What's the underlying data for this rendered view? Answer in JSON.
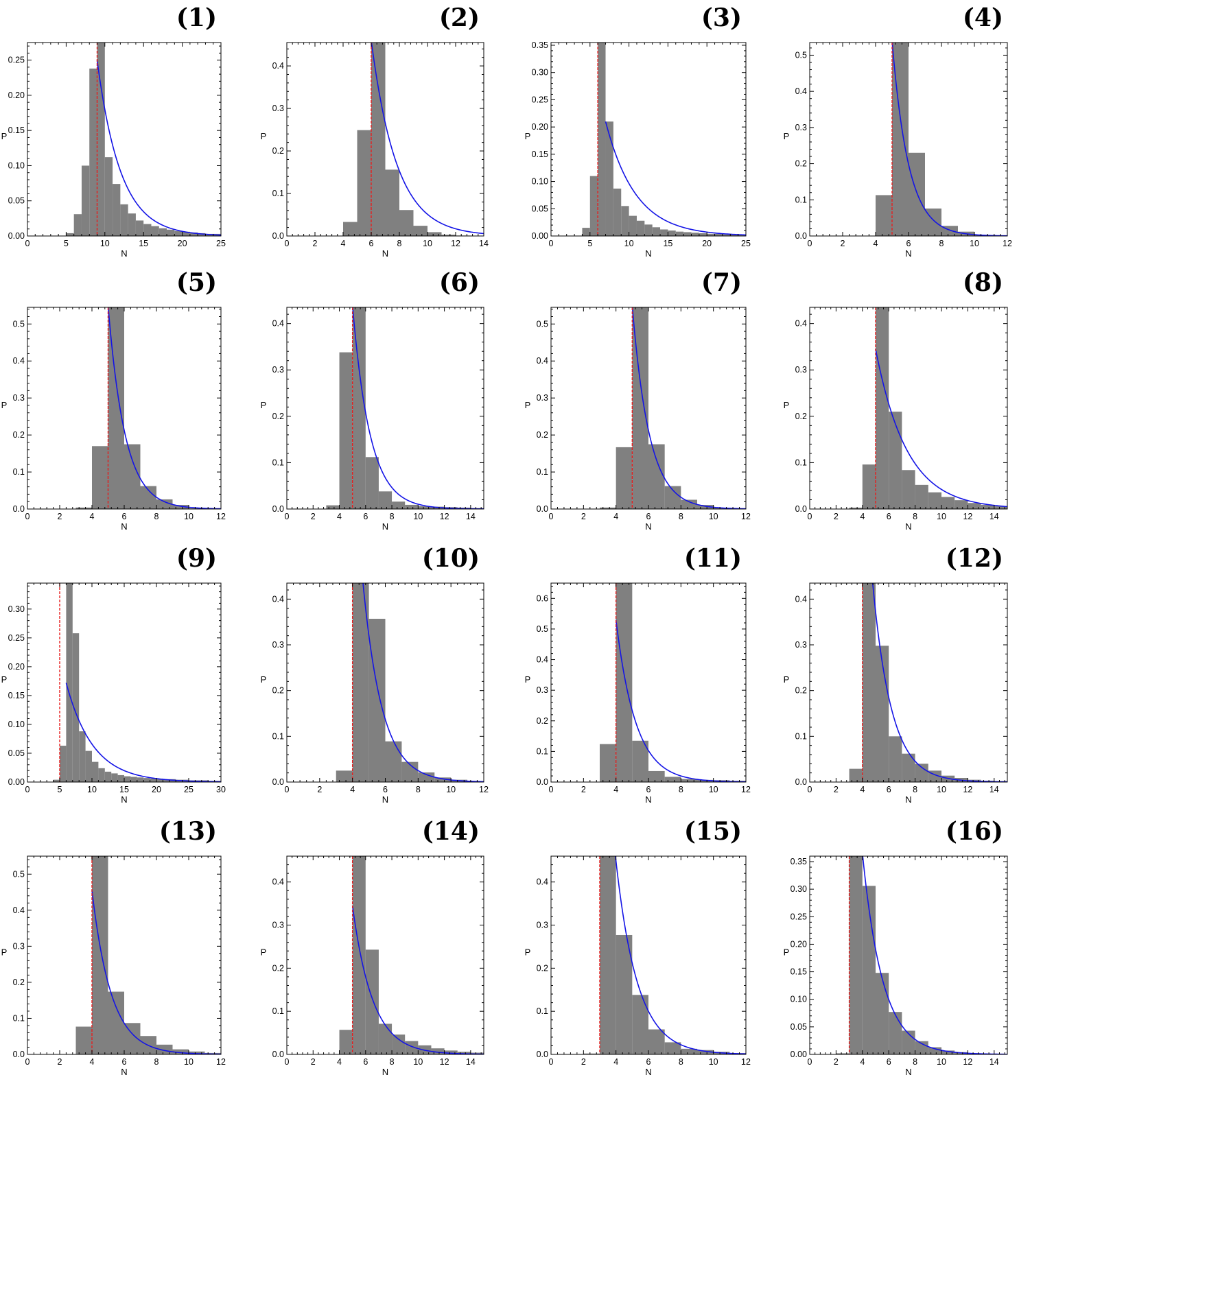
{
  "chart_data": [
    {
      "panel_label": "(1)",
      "type": "bar",
      "xlabel": "N",
      "ylabel": "P",
      "xlim": [
        0,
        25
      ],
      "ylim": [
        0,
        0.275
      ],
      "xticks": [
        0,
        5,
        10,
        15,
        20,
        25
      ],
      "yticks": [
        0,
        0.05,
        0.1,
        0.15,
        0.2,
        0.25
      ],
      "ytick_labels": [
        "0.00",
        "0.05",
        "0.10",
        "0.15",
        "0.20",
        "0.25"
      ],
      "bar_edges": [
        0,
        1,
        2,
        3,
        4,
        5,
        6,
        7,
        8,
        9,
        10,
        11,
        12,
        13,
        14,
        15,
        16,
        17,
        18,
        19,
        20,
        21,
        22,
        23,
        24,
        25
      ],
      "values": [
        0,
        0,
        0,
        0,
        0,
        0.004,
        0.031,
        0.1,
        0.238,
        0.276,
        0.112,
        0.074,
        0.045,
        0.032,
        0.022,
        0.017,
        0.014,
        0.011,
        0.009,
        0.007,
        0.006,
        0.005,
        0.004,
        0.003,
        0.003
      ],
      "vline_x": 9,
      "fit_curve": {
        "x_start": 9,
        "x_end": 25,
        "y_start": 0.25,
        "decay": 0.33
      }
    },
    {
      "panel_label": "(2)",
      "type": "bar",
      "xlabel": "N",
      "ylabel": "P",
      "xlim": [
        0,
        14
      ],
      "ylim": [
        0,
        0.455
      ],
      "xticks": [
        0,
        2,
        4,
        6,
        8,
        10,
        12,
        14
      ],
      "yticks": [
        0,
        0.1,
        0.2,
        0.3,
        0.4
      ],
      "ytick_labels": [
        "0.0",
        "0.1",
        "0.2",
        "0.3",
        "0.4"
      ],
      "bar_edges": [
        0,
        1,
        2,
        3,
        4,
        5,
        6,
        7,
        8,
        9,
        10,
        11,
        12,
        13,
        14
      ],
      "values": [
        0,
        0,
        0,
        0,
        0.033,
        0.249,
        0.46,
        0.156,
        0.061,
        0.024,
        0.009,
        0.003,
        0.001,
        0
      ],
      "vline_x": 6,
      "fit_curve": {
        "x_start": 6,
        "x_end": 14,
        "y_start": 0.46,
        "decay": 0.55
      }
    },
    {
      "panel_label": "(3)",
      "type": "bar",
      "xlabel": "N",
      "ylabel": "P",
      "xlim": [
        0,
        25
      ],
      "ylim": [
        0,
        0.355
      ],
      "xticks": [
        0,
        5,
        10,
        15,
        20,
        25
      ],
      "yticks": [
        0,
        0.05,
        0.1,
        0.15,
        0.2,
        0.25,
        0.3,
        0.35
      ],
      "ytick_labels": [
        "0.00",
        "0.05",
        "0.10",
        "0.15",
        "0.20",
        "0.25",
        "0.30",
        "0.35"
      ],
      "bar_edges": [
        0,
        1,
        2,
        3,
        4,
        5,
        6,
        7,
        8,
        9,
        10,
        11,
        12,
        13,
        14,
        15,
        16,
        17,
        18,
        19,
        20,
        21,
        22,
        23,
        24,
        25
      ],
      "values": [
        0,
        0,
        0,
        0,
        0.015,
        0.11,
        0.36,
        0.21,
        0.087,
        0.055,
        0.037,
        0.028,
        0.021,
        0.016,
        0.012,
        0.01,
        0.008,
        0.007,
        0.006,
        0.005,
        0.004,
        0.004,
        0.003,
        0.003,
        0.002
      ],
      "vline_x": 6,
      "fit_curve": {
        "x_start": 7,
        "x_end": 25,
        "y_start": 0.21,
        "decay": 0.26
      }
    },
    {
      "panel_label": "(4)",
      "type": "bar",
      "xlabel": "N",
      "ylabel": "P",
      "xlim": [
        0,
        12
      ],
      "ylim": [
        0,
        0.535
      ],
      "xticks": [
        0,
        2,
        4,
        6,
        8,
        10,
        12
      ],
      "yticks": [
        0,
        0.1,
        0.2,
        0.3,
        0.4,
        0.5
      ],
      "ytick_labels": [
        "0.0",
        "0.1",
        "0.2",
        "0.3",
        "0.4",
        "0.5"
      ],
      "bar_edges": [
        0,
        1,
        2,
        3,
        4,
        5,
        6,
        7,
        8,
        9,
        10,
        11,
        12
      ],
      "values": [
        0,
        0,
        0,
        0,
        0.113,
        0.54,
        0.23,
        0.076,
        0.028,
        0.012,
        0.003,
        0
      ],
      "vline_x": 5,
      "fit_curve": {
        "x_start": 5,
        "x_end": 12,
        "y_start": 0.54,
        "decay": 1.0
      }
    },
    {
      "panel_label": "(5)",
      "type": "bar",
      "xlabel": "N",
      "ylabel": "P",
      "xlim": [
        0,
        12
      ],
      "ylim": [
        0,
        0.545
      ],
      "xticks": [
        0,
        2,
        4,
        6,
        8,
        10,
        12
      ],
      "yticks": [
        0,
        0.1,
        0.2,
        0.3,
        0.4,
        0.5
      ],
      "ytick_labels": [
        "0.0",
        "0.1",
        "0.2",
        "0.3",
        "0.4",
        "0.5"
      ],
      "bar_edges": [
        0,
        1,
        2,
        3,
        4,
        5,
        6,
        7,
        8,
        9,
        10,
        11,
        12
      ],
      "values": [
        0,
        0,
        0,
        0.004,
        0.17,
        0.55,
        0.175,
        0.062,
        0.026,
        0.011,
        0.002,
        0
      ],
      "vline_x": 5,
      "fit_curve": {
        "x_start": 5,
        "x_end": 12,
        "y_start": 0.55,
        "decay": 0.95
      }
    },
    {
      "panel_label": "(6)",
      "type": "bar",
      "xlabel": "N",
      "ylabel": "P",
      "xlim": [
        0,
        15
      ],
      "ylim": [
        0,
        0.435
      ],
      "xticks": [
        0,
        2,
        4,
        6,
        8,
        10,
        12,
        14
      ],
      "yticks": [
        0,
        0.1,
        0.2,
        0.3,
        0.4
      ],
      "ytick_labels": [
        "0.0",
        "0.1",
        "0.2",
        "0.3",
        "0.4"
      ],
      "bar_edges": [
        0,
        1,
        2,
        3,
        4,
        5,
        6,
        7,
        8,
        9,
        10,
        11,
        12,
        13,
        14,
        15
      ],
      "values": [
        0,
        0,
        0,
        0.008,
        0.338,
        0.44,
        0.112,
        0.038,
        0.016,
        0.009,
        0.006,
        0.005,
        0.004,
        0.003,
        0.002
      ],
      "vline_x": 5,
      "fit_curve": {
        "x_start": 5,
        "x_end": 15,
        "y_start": 0.44,
        "decay": 0.75
      }
    },
    {
      "panel_label": "(7)",
      "type": "bar",
      "xlabel": "N",
      "ylabel": "P",
      "xlim": [
        0,
        12
      ],
      "ylim": [
        0,
        0.545
      ],
      "xticks": [
        0,
        2,
        4,
        6,
        8,
        10,
        12
      ],
      "yticks": [
        0,
        0.1,
        0.2,
        0.3,
        0.4,
        0.5
      ],
      "ytick_labels": [
        "0.0",
        "0.1",
        "0.2",
        "0.3",
        "0.4",
        "0.5"
      ],
      "bar_edges": [
        0,
        1,
        2,
        3,
        4,
        5,
        6,
        7,
        8,
        9,
        10,
        11,
        12
      ],
      "values": [
        0,
        0,
        0,
        0.004,
        0.167,
        0.55,
        0.175,
        0.062,
        0.025,
        0.011,
        0.003,
        0
      ],
      "vline_x": 5,
      "fit_curve": {
        "x_start": 5,
        "x_end": 12,
        "y_start": 0.55,
        "decay": 0.95
      }
    },
    {
      "panel_label": "(8)",
      "type": "bar",
      "xlabel": "N",
      "ylabel": "P",
      "xlim": [
        0,
        15
      ],
      "ylim": [
        0,
        0.435
      ],
      "xticks": [
        0,
        2,
        4,
        6,
        8,
        10,
        12,
        14
      ],
      "yticks": [
        0,
        0.1,
        0.2,
        0.3,
        0.4
      ],
      "ytick_labels": [
        "0.0",
        "0.1",
        "0.2",
        "0.3",
        "0.4"
      ],
      "bar_edges": [
        0,
        1,
        2,
        3,
        4,
        5,
        6,
        7,
        8,
        9,
        10,
        11,
        12,
        13,
        14,
        15
      ],
      "values": [
        0,
        0,
        0,
        0.003,
        0.096,
        0.44,
        0.21,
        0.084,
        0.052,
        0.036,
        0.026,
        0.019,
        0.013,
        0.009,
        0.006
      ],
      "vline_x": 5,
      "fit_curve": {
        "x_start": 5,
        "x_end": 15,
        "y_start": 0.345,
        "decay": 0.42
      }
    },
    {
      "panel_label": "(9)",
      "type": "bar",
      "xlabel": "N",
      "ylabel": "P",
      "xlim": [
        0,
        30
      ],
      "ylim": [
        0,
        0.345
      ],
      "xticks": [
        0,
        5,
        10,
        15,
        20,
        25,
        30
      ],
      "yticks": [
        0,
        0.05,
        0.1,
        0.15,
        0.2,
        0.25,
        0.3
      ],
      "ytick_labels": [
        "0.00",
        "0.05",
        "0.10",
        "0.15",
        "0.20",
        "0.25",
        "0.30"
      ],
      "bar_edges": [
        0,
        1,
        2,
        3,
        4,
        5,
        6,
        7,
        8,
        9,
        10,
        11,
        12,
        13,
        14,
        15,
        16,
        17,
        18,
        19,
        20,
        21,
        22,
        23,
        24,
        25,
        26,
        27,
        28,
        29,
        30
      ],
      "values": [
        0,
        0,
        0,
        0,
        0.004,
        0.063,
        0.35,
        0.258,
        0.088,
        0.054,
        0.035,
        0.024,
        0.018,
        0.015,
        0.012,
        0.01,
        0.009,
        0.008,
        0.007,
        0.006,
        0.006,
        0.005,
        0.005,
        0.004,
        0.004,
        0.003,
        0.003,
        0.003,
        0.002,
        0.002
      ],
      "vline_x": 5,
      "fit_curve": {
        "x_start": 6,
        "x_end": 30,
        "y_start": 0.172,
        "decay": 0.24
      }
    },
    {
      "panel_label": "(10)",
      "type": "bar",
      "xlabel": "N",
      "ylabel": "P",
      "xlim": [
        0,
        12
      ],
      "ylim": [
        0,
        0.435
      ],
      "xticks": [
        0,
        2,
        4,
        6,
        8,
        10,
        12
      ],
      "yticks": [
        0,
        0.1,
        0.2,
        0.3,
        0.4
      ],
      "ytick_labels": [
        "0.0",
        "0.1",
        "0.2",
        "0.3",
        "0.4"
      ],
      "bar_edges": [
        0,
        1,
        2,
        3,
        4,
        5,
        6,
        7,
        8,
        9,
        10,
        11,
        12
      ],
      "values": [
        0,
        0,
        0,
        0.025,
        0.44,
        0.357,
        0.089,
        0.044,
        0.021,
        0.01,
        0.005,
        0.002
      ],
      "vline_x": 4,
      "fit_curve": {
        "x_start": 4,
        "x_end": 12,
        "y_start": 0.75,
        "decay": 0.85
      }
    },
    {
      "panel_label": "(11)",
      "type": "bar",
      "xlabel": "N",
      "ylabel": "P",
      "xlim": [
        0,
        12
      ],
      "ylim": [
        0,
        0.65
      ],
      "xticks": [
        0,
        2,
        4,
        6,
        8,
        10,
        12
      ],
      "yticks": [
        0,
        0.1,
        0.2,
        0.3,
        0.4,
        0.5,
        0.6
      ],
      "ytick_labels": [
        "0.0",
        "0.1",
        "0.2",
        "0.3",
        "0.4",
        "0.5",
        "0.6"
      ],
      "bar_edges": [
        0,
        1,
        2,
        3,
        4,
        5,
        6,
        7,
        8,
        9,
        10,
        11,
        12
      ],
      "values": [
        0,
        0,
        0,
        0.124,
        0.66,
        0.135,
        0.036,
        0.017,
        0.01,
        0.007,
        0.006,
        0.004
      ],
      "vline_x": 4,
      "fit_curve": {
        "x_start": 4,
        "x_end": 12,
        "y_start": 0.53,
        "decay": 0.82
      }
    },
    {
      "panel_label": "(12)",
      "type": "bar",
      "xlabel": "N",
      "ylabel": "P",
      "xlim": [
        0,
        15
      ],
      "ylim": [
        0,
        0.435
      ],
      "xticks": [
        0,
        2,
        4,
        6,
        8,
        10,
        12,
        14
      ],
      "yticks": [
        0,
        0.1,
        0.2,
        0.3,
        0.4
      ],
      "ytick_labels": [
        "0.0",
        "0.1",
        "0.2",
        "0.3",
        "0.4"
      ],
      "bar_edges": [
        0,
        1,
        2,
        3,
        4,
        5,
        6,
        7,
        8,
        9,
        10,
        11,
        12,
        13,
        14,
        15
      ],
      "values": [
        0,
        0,
        0,
        0.029,
        0.44,
        0.298,
        0.1,
        0.062,
        0.04,
        0.025,
        0.014,
        0.009,
        0.005,
        0.003,
        0.002
      ],
      "vline_x": 4,
      "fit_curve": {
        "x_start": 4,
        "x_end": 15,
        "y_start": 0.75,
        "decay": 0.7
      }
    },
    {
      "panel_label": "(13)",
      "type": "bar",
      "xlabel": "N",
      "ylabel": "P",
      "xlim": [
        0,
        12
      ],
      "ylim": [
        0,
        0.55
      ],
      "xticks": [
        0,
        2,
        4,
        6,
        8,
        10,
        12
      ],
      "yticks": [
        0,
        0.1,
        0.2,
        0.3,
        0.4,
        0.5
      ],
      "ytick_labels": [
        "0.0",
        "0.1",
        "0.2",
        "0.3",
        "0.4",
        "0.5"
      ],
      "bar_edges": [
        0,
        1,
        2,
        3,
        4,
        5,
        6,
        7,
        8,
        9,
        10,
        11,
        12
      ],
      "values": [
        0,
        0,
        0,
        0.077,
        0.56,
        0.174,
        0.087,
        0.051,
        0.027,
        0.014,
        0.008,
        0.004
      ],
      "vline_x": 4,
      "fit_curve": {
        "x_start": 4,
        "x_end": 12,
        "y_start": 0.455,
        "decay": 0.83
      }
    },
    {
      "panel_label": "(14)",
      "type": "bar",
      "xlabel": "N",
      "ylabel": "P",
      "xlim": [
        0,
        15
      ],
      "ylim": [
        0,
        0.46
      ],
      "xticks": [
        0,
        2,
        4,
        6,
        8,
        10,
        12,
        14
      ],
      "yticks": [
        0,
        0.1,
        0.2,
        0.3,
        0.4
      ],
      "ytick_labels": [
        "0.0",
        "0.1",
        "0.2",
        "0.3",
        "0.4"
      ],
      "bar_edges": [
        0,
        1,
        2,
        3,
        4,
        5,
        6,
        7,
        8,
        9,
        10,
        11,
        12,
        13,
        14,
        15
      ],
      "values": [
        0,
        0,
        0,
        0,
        0.057,
        0.47,
        0.243,
        0.071,
        0.046,
        0.031,
        0.021,
        0.014,
        0.009,
        0.006,
        0.004
      ],
      "vline_x": 5,
      "fit_curve": {
        "x_start": 5,
        "x_end": 15,
        "y_start": 0.345,
        "decay": 0.65
      }
    },
    {
      "panel_label": "(15)",
      "type": "bar",
      "xlabel": "N",
      "ylabel": "P",
      "xlim": [
        0,
        12
      ],
      "ylim": [
        0,
        0.46
      ],
      "xticks": [
        0,
        2,
        4,
        6,
        8,
        10,
        12
      ],
      "yticks": [
        0,
        0.1,
        0.2,
        0.3,
        0.4
      ],
      "ytick_labels": [
        "0.0",
        "0.1",
        "0.2",
        "0.3",
        "0.4"
      ],
      "bar_edges": [
        0,
        1,
        2,
        3,
        4,
        5,
        6,
        7,
        8,
        9,
        10,
        11,
        12
      ],
      "values": [
        0,
        0,
        0.002,
        0.47,
        0.277,
        0.138,
        0.058,
        0.028,
        0.013,
        0.01,
        0.006,
        0.003
      ],
      "vline_x": 3,
      "fit_curve": {
        "x_start": 3,
        "x_end": 12,
        "y_start": 0.95,
        "decay": 0.75
      }
    },
    {
      "panel_label": "(16)",
      "type": "bar",
      "xlabel": "N",
      "ylabel": "P",
      "xlim": [
        0,
        15
      ],
      "ylim": [
        0,
        0.36
      ],
      "xticks": [
        0,
        2,
        4,
        6,
        8,
        10,
        12,
        14
      ],
      "yticks": [
        0,
        0.05,
        0.1,
        0.15,
        0.2,
        0.25,
        0.3,
        0.35
      ],
      "ytick_labels": [
        "0.00",
        "0.05",
        "0.10",
        "0.15",
        "0.20",
        "0.25",
        "0.30",
        "0.35"
      ],
      "bar_edges": [
        0,
        1,
        2,
        3,
        4,
        5,
        6,
        7,
        8,
        9,
        10,
        11,
        12,
        13,
        14,
        15
      ],
      "values": [
        0,
        0,
        0.002,
        0.37,
        0.306,
        0.148,
        0.077,
        0.043,
        0.024,
        0.013,
        0.007,
        0.004,
        0.002,
        0.001,
        0.001
      ],
      "vline_x": 3,
      "fit_curve": {
        "x_start": 3,
        "x_end": 15,
        "y_start": 0.7,
        "decay": 0.65
      }
    }
  ],
  "colors": {
    "bar_fill": "#808080",
    "fit_curve": "#1414e6",
    "vline": "#e61e1e",
    "axis": "#000000"
  }
}
